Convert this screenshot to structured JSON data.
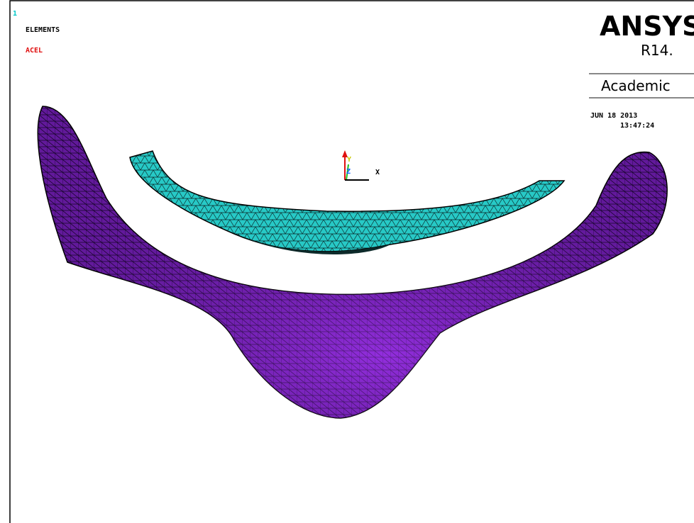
{
  "window_number": "1",
  "labels": {
    "plot_type": "ELEMENTS",
    "load": "ACEL"
  },
  "logo": {
    "product": "ANSYS",
    "release": "R14.",
    "license": "Academic"
  },
  "timestamp": {
    "date": "JUN 18 2013",
    "time": "13:47:24"
  },
  "triad": {
    "y": "Y",
    "z": "Z",
    "x": "X"
  }
}
